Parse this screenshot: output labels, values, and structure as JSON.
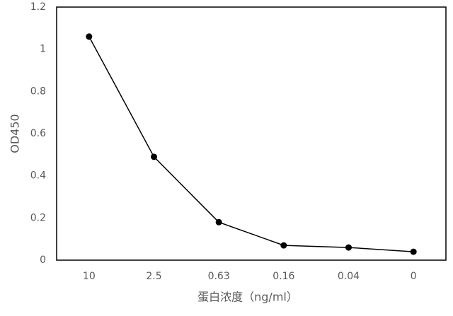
{
  "chart_data": {
    "type": "line",
    "x_label": "蛋白浓度（ng/ml）",
    "y_label": "OD450",
    "categories": [
      "10",
      "2.5",
      "0.63",
      "0.16",
      "0.04",
      "0"
    ],
    "values": [
      1.06,
      0.49,
      0.18,
      0.07,
      0.06,
      0.04
    ],
    "color": "#000000",
    "ylim": [
      0,
      1.2
    ],
    "yticks": [
      0,
      0.2,
      0.4,
      0.6,
      0.8,
      1,
      1.2
    ],
    "grid": false
  }
}
